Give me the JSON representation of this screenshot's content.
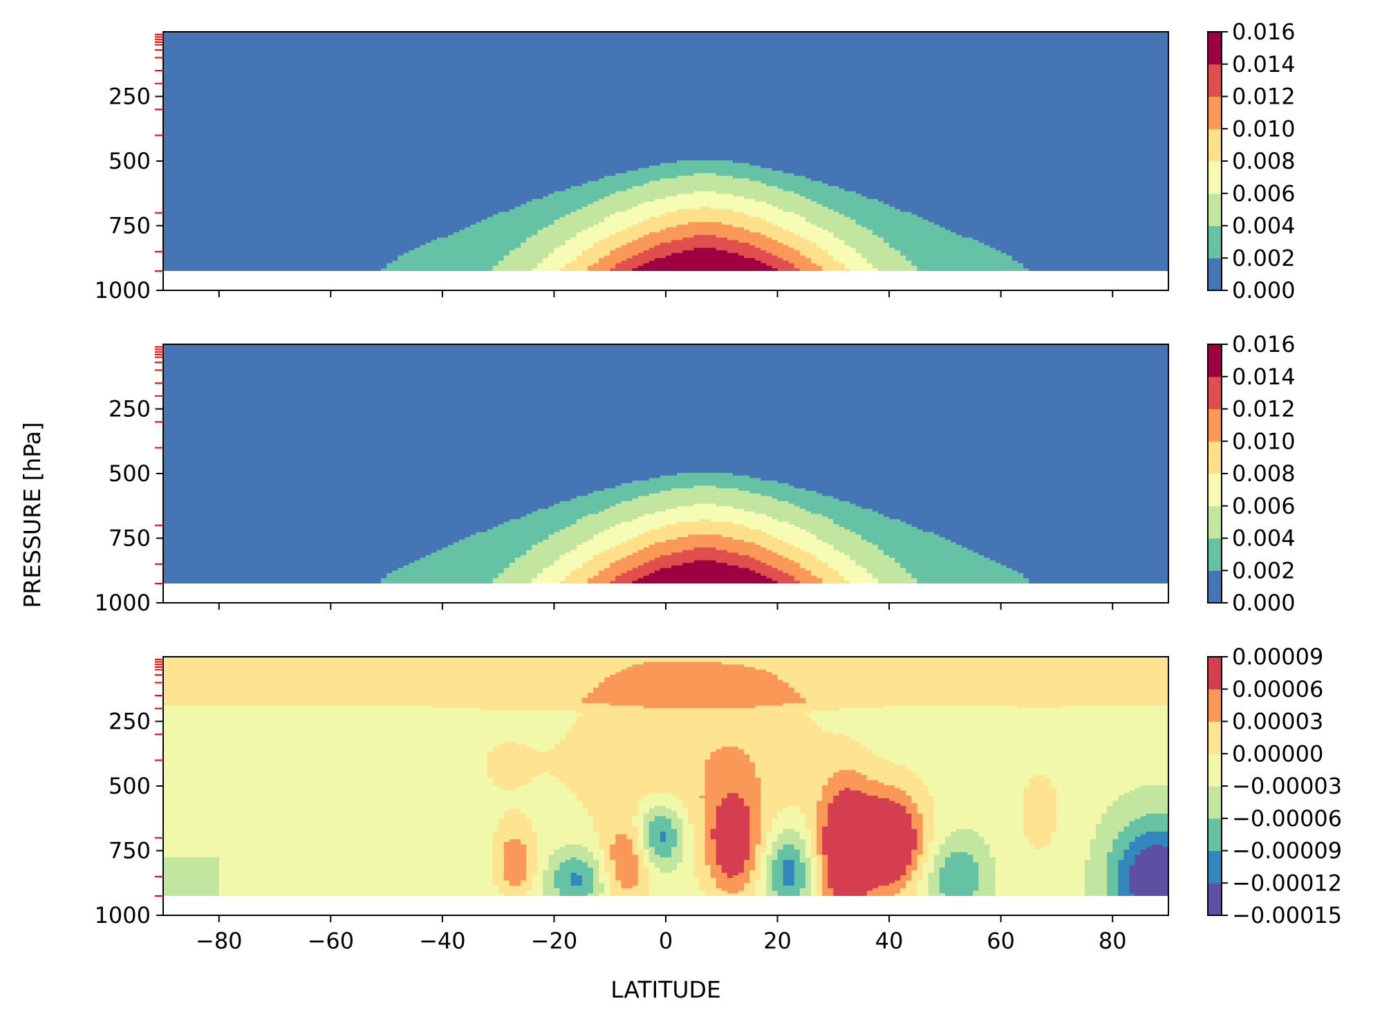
{
  "figure": {
    "ylabel": "PRESSURE [hPa]",
    "xlabel": "LATITUDE",
    "colors": {
      "background": "#ffffff",
      "level_tick_marks": "#ff0000",
      "axis": "#000000"
    }
  },
  "chart_data": [
    {
      "type": "heatmap",
      "title": "",
      "x_range": [
        -90,
        90
      ],
      "y_range": [
        0,
        1000
      ],
      "y_inverted": true,
      "surface_pressure": 925,
      "x_ticks": [
        -80,
        -60,
        -40,
        -20,
        0,
        20,
        40,
        60,
        80
      ],
      "x_tick_labels_visible": false,
      "y_ticks": [
        250,
        500,
        750,
        1000
      ],
      "y_tick_labels": [
        "250",
        "500",
        "750",
        "1000"
      ],
      "model_levels_hpa": [
        10,
        20,
        30,
        40,
        50,
        70,
        100,
        150,
        200,
        250,
        300,
        400,
        700,
        850,
        925
      ],
      "levels": [
        0.0,
        0.002,
        0.004,
        0.006,
        0.008,
        0.01,
        0.012,
        0.014,
        0.016
      ],
      "colors": [
        "#4575b4",
        "#66c2a5",
        "#c2e6a0",
        "#f7fcb4",
        "#fee08b",
        "#fa9857",
        "#e04f4e",
        "#9e0142"
      ],
      "colorbar_tick_labels": [
        "0.000",
        "0.002",
        "0.004",
        "0.006",
        "0.008",
        "0.010",
        "0.012",
        "0.014",
        "0.016"
      ],
      "field": {
        "kind": "moisture",
        "center_lat": 7,
        "peak_value": 0.0158,
        "surface_lat_halfwidth": 68,
        "top_pressure_at_center": 440
      }
    },
    {
      "type": "heatmap",
      "title": "",
      "x_range": [
        -90,
        90
      ],
      "y_range": [
        0,
        1000
      ],
      "y_inverted": true,
      "surface_pressure": 925,
      "x_ticks": [
        -80,
        -60,
        -40,
        -20,
        0,
        20,
        40,
        60,
        80
      ],
      "x_tick_labels_visible": false,
      "y_ticks": [
        250,
        500,
        750,
        1000
      ],
      "y_tick_labels": [
        "250",
        "500",
        "750",
        "1000"
      ],
      "model_levels_hpa": [
        10,
        20,
        30,
        40,
        50,
        70,
        100,
        150,
        200,
        250,
        300,
        400,
        700,
        850,
        925
      ],
      "levels": [
        0.0,
        0.002,
        0.004,
        0.006,
        0.008,
        0.01,
        0.012,
        0.014,
        0.016
      ],
      "colors": [
        "#4575b4",
        "#66c2a5",
        "#c2e6a0",
        "#f7fcb4",
        "#fee08b",
        "#fa9857",
        "#e04f4e",
        "#9e0142"
      ],
      "colorbar_tick_labels": [
        "0.000",
        "0.002",
        "0.004",
        "0.006",
        "0.008",
        "0.010",
        "0.012",
        "0.014",
        "0.016"
      ],
      "field": {
        "kind": "moisture",
        "center_lat": 7,
        "peak_value": 0.0158,
        "surface_lat_halfwidth": 69,
        "top_pressure_at_center": 440
      }
    },
    {
      "type": "heatmap",
      "title": "",
      "x_range": [
        -90,
        90
      ],
      "y_range": [
        0,
        1000
      ],
      "y_inverted": true,
      "surface_pressure": 925,
      "x_ticks": [
        -80,
        -60,
        -40,
        -20,
        0,
        20,
        40,
        60,
        80
      ],
      "x_tick_labels_visible": true,
      "x_tick_labels": [
        "−80",
        "−60",
        "−40",
        "−20",
        "0",
        "20",
        "40",
        "60",
        "80"
      ],
      "y_ticks": [
        250,
        500,
        750,
        1000
      ],
      "y_tick_labels": [
        "250",
        "500",
        "750",
        "1000"
      ],
      "model_levels_hpa": [
        10,
        20,
        30,
        40,
        50,
        70,
        100,
        150,
        200,
        250,
        300,
        400,
        700,
        850,
        925
      ],
      "levels": [
        -0.00015,
        -0.00012,
        -9e-05,
        -6e-05,
        -3e-05,
        0.0,
        3e-05,
        6e-05,
        9e-05
      ],
      "colors": [
        "#5e4fa2",
        "#3288bd",
        "#66c2a5",
        "#c2e6a0",
        "#f1f8aa",
        "#fee491",
        "#fa9857",
        "#d53e4f"
      ],
      "colorbar_tick_labels": [
        "−0.00015",
        "−0.00012",
        "−0.00009",
        "−0.00006",
        "−0.00003",
        "0.00000",
        "0.00003",
        "0.00006",
        "0.00009"
      ],
      "field": {
        "kind": "difference",
        "base": -2e-05,
        "upper_band": {
          "p_top": 0,
          "p_bottom": 175,
          "value": 1.2e-05
        },
        "blobs": [
          {
            "lat": -27,
            "p": 800,
            "slat": 2.5,
            "sp": 90,
            "amp": 7.5e-05
          },
          {
            "lat": -16,
            "p": 860,
            "slat": 3.5,
            "sp": 80,
            "amp": -8e-05
          },
          {
            "lat": -7,
            "p": 800,
            "slat": 3.0,
            "sp": 110,
            "amp": 7e-05
          },
          {
            "lat": -1,
            "p": 690,
            "slat": 3.0,
            "sp": 90,
            "amp": -0.0001
          },
          {
            "lat": 12,
            "p": 730,
            "slat": 3.5,
            "sp": 150,
            "amp": 0.0001
          },
          {
            "lat": 22,
            "p": 830,
            "slat": 3.0,
            "sp": 110,
            "amp": -9e-05
          },
          {
            "lat": 32,
            "p": 760,
            "slat": 3.5,
            "sp": 200,
            "amp": 0.00012
          },
          {
            "lat": 40,
            "p": 720,
            "slat": 3.5,
            "sp": 110,
            "amp": 0.0001
          },
          {
            "lat": 40,
            "p": 700,
            "slat": 6.0,
            "sp": 180,
            "amp": 6e-05
          },
          {
            "lat": 52,
            "p": 850,
            "slat": 4.0,
            "sp": 110,
            "amp": -7e-05
          },
          {
            "lat": 88,
            "p": 860,
            "slat": 6.0,
            "sp": 160,
            "amp": -0.00014
          },
          {
            "lat": -5,
            "p": 380,
            "slat": 10.0,
            "sp": 280,
            "amp": 3.5e-05
          },
          {
            "lat": 15,
            "p": 380,
            "slat": 10.0,
            "sp": 250,
            "amp": 4e-05
          },
          {
            "lat": -30,
            "p": 420,
            "slat": 8.0,
            "sp": 200,
            "amp": 2e-05
          },
          {
            "lat": 67,
            "p": 600,
            "slat": 5.0,
            "sp": 220,
            "amp": 2.5e-05
          }
        ]
      }
    }
  ]
}
